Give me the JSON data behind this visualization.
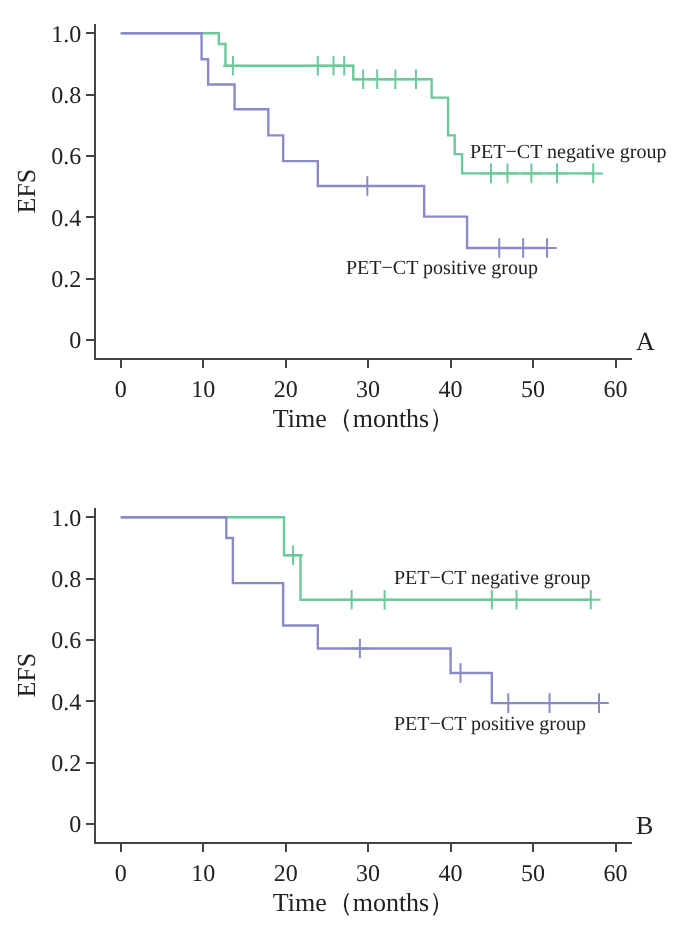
{
  "chart_data": [
    {
      "type": "step",
      "xlabel": "Time（months）",
      "ylabel": "EFS",
      "xlim": [
        -3,
        62
      ],
      "xticks": [
        0,
        10,
        20,
        30,
        40,
        50,
        60
      ],
      "ylim": [
        -0.06,
        1.03
      ],
      "yticks": [
        {
          "value": 1.0,
          "label": "1.0"
        },
        {
          "value": 0.8,
          "label": "0.8"
        },
        {
          "value": 0.6,
          "label": "0.6"
        },
        {
          "value": 0.4,
          "label": "0.4"
        },
        {
          "value": 0.2,
          "label": "0.2"
        },
        0
      ],
      "series": [
        {
          "color": "#6cc99a",
          "marker": "none",
          "x": [
            0,
            11.9,
            12.7,
            28.2,
            37.7,
            39.7,
            40.5,
            41.4,
            57.3
          ],
          "values": [
            1.0,
            0.965,
            0.894,
            0.85,
            0.79,
            0.667,
            0.606,
            0.543,
            0.543
          ]
        },
        {
          "type": "scatter",
          "color": "#6cc99a",
          "marker": "cross",
          "x": [
            13.6,
            23.9,
            25.8,
            27.1,
            29.4,
            31.1,
            33.3,
            35.8,
            44.9,
            46.9,
            49.8,
            52.9,
            57.3
          ],
          "values": [
            0.894,
            0.894,
            0.894,
            0.894,
            0.85,
            0.85,
            0.85,
            0.85,
            0.543,
            0.543,
            0.543,
            0.543,
            0.543
          ]
        },
        {
          "color": "#8a8ac8",
          "marker": "none",
          "x": [
            0,
            9.8,
            10.6,
            13.8,
            17.9,
            19.7,
            23.9,
            36.8,
            42.0,
            51.7
          ],
          "values": [
            1.0,
            0.915,
            0.833,
            0.752,
            0.667,
            0.583,
            0.502,
            0.402,
            0.3,
            0.3
          ]
        },
        {
          "type": "scatter",
          "color": "#8a8ac8",
          "marker": "cross",
          "x": [
            29.9,
            45.9,
            48.8,
            51.7
          ],
          "values": [
            0.502,
            0.3,
            0.3,
            0.3
          ]
        }
      ],
      "annotations": [
        "PET−CT negative group",
        "PET−CT positive group",
        "A"
      ]
    },
    {
      "type": "step",
      "xlabel": "Time（months）",
      "ylabel": "EFS",
      "xlim": [
        -3,
        62
      ],
      "xticks": [
        0,
        10,
        20,
        30,
        40,
        50,
        60
      ],
      "ylim": [
        -0.06,
        1.03
      ],
      "yticks": [
        {
          "value": 1.0,
          "label": "1.0"
        },
        {
          "value": 0.8,
          "label": "0.8"
        },
        {
          "value": 0.6,
          "label": "0.6"
        },
        {
          "value": 0.4,
          "label": "0.4"
        },
        {
          "value": 0.2,
          "label": "0.2"
        },
        0
      ],
      "series": [
        {
          "color": "#6cc99a",
          "marker": "none",
          "x": [
            0,
            19.8,
            21.8,
            57.0
          ],
          "values": [
            1.0,
            0.876,
            0.731,
            0.731
          ]
        },
        {
          "type": "scatter",
          "color": "#6cc99a",
          "marker": "cross",
          "x": [
            20.9,
            28.0,
            32.0,
            45.0,
            48.0,
            57.0
          ],
          "values": [
            0.876,
            0.731,
            0.731,
            0.731,
            0.731,
            0.731
          ]
        },
        {
          "color": "#8a8ac8",
          "marker": "none",
          "x": [
            0,
            12.8,
            13.6,
            19.7,
            23.9,
            40.0,
            45.0,
            58.0
          ],
          "values": [
            1.0,
            0.932,
            0.785,
            0.647,
            0.572,
            0.492,
            0.394,
            0.394
          ]
        },
        {
          "type": "scatter",
          "color": "#8a8ac8",
          "marker": "cross",
          "x": [
            29.0,
            41.2,
            47.0,
            52.0,
            58.0
          ],
          "values": [
            0.572,
            0.492,
            0.394,
            0.394,
            0.394
          ]
        }
      ],
      "annotations": [
        "PET−CT negative group",
        "PET−CT positive group",
        "B"
      ]
    }
  ]
}
